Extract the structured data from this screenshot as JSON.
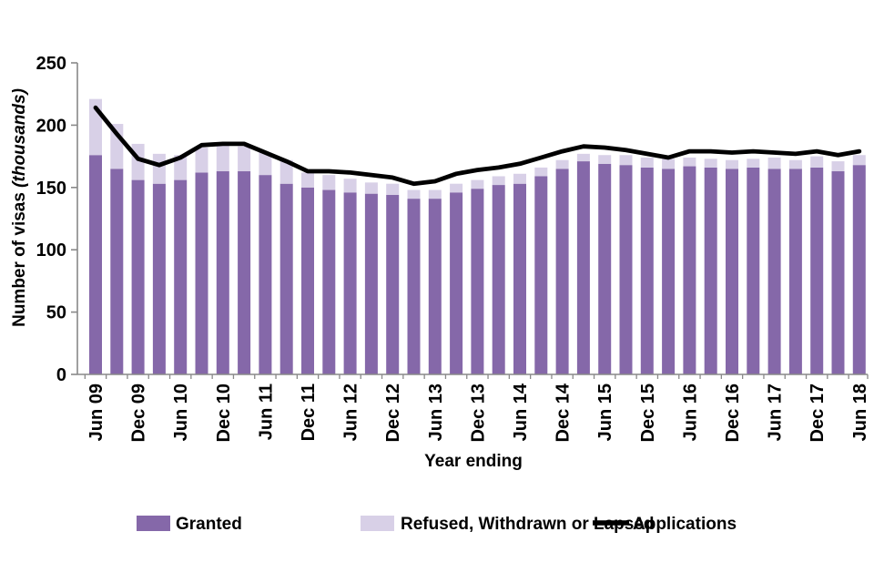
{
  "chart_data": {
    "type": "bar",
    "subtype": "stacked-bars-with-line-overlay",
    "title": "",
    "xlabel": "Year ending",
    "ylabel": "Number of visas (thousands)",
    "ylabel_main": "Number of visas ",
    "ylabel_italic": "(thousands)",
    "ylim": [
      0,
      250
    ],
    "yticks": [
      0,
      50,
      100,
      150,
      200,
      250
    ],
    "grid": "off",
    "legend_position": "bottom",
    "x_tick_labels": [
      "Jun 09",
      "Dec 09",
      "Jun 10",
      "Dec 10",
      "Jun 11",
      "Dec 11",
      "Jun 12",
      "Dec 12",
      "Jun 13",
      "Dec 13",
      "Jun 14",
      "Dec 14",
      "Jun 15",
      "Dec 15",
      "Jun 16",
      "Dec 16",
      "Jun 17",
      "Dec 17",
      "Jun 18"
    ],
    "categories": [
      "Jun 09",
      "Sep 09",
      "Dec 09",
      "Mar 10",
      "Jun 10",
      "Sep 10",
      "Dec 10",
      "Mar 11",
      "Jun 11",
      "Sep 11",
      "Dec 11",
      "Mar 12",
      "Jun 12",
      "Sep 12",
      "Dec 12",
      "Mar 13",
      "Jun 13",
      "Sep 13",
      "Dec 13",
      "Mar 14",
      "Jun 14",
      "Sep 14",
      "Dec 14",
      "Mar 15",
      "Jun 15",
      "Sep 15",
      "Dec 15",
      "Mar 16",
      "Jun 16",
      "Sep 16",
      "Dec 16",
      "Mar 17",
      "Jun 17",
      "Sep 17",
      "Dec 17",
      "Mar 18",
      "Jun 18"
    ],
    "series": [
      {
        "name": "Granted",
        "type": "bar",
        "color": "#8568A9",
        "values": [
          176,
          165,
          156,
          153,
          156,
          162,
          163,
          163,
          160,
          153,
          150,
          148,
          146,
          145,
          144,
          141,
          141,
          146,
          149,
          152,
          153,
          159,
          165,
          171,
          169,
          168,
          166,
          165,
          167,
          166,
          165,
          166,
          165,
          165,
          166,
          163,
          168
        ]
      },
      {
        "name": "Refused, Withdrawn or Lapsed",
        "type": "bar",
        "color": "#D8D0E7",
        "values": [
          45,
          36,
          29,
          24,
          20,
          20,
          21,
          20,
          18,
          19,
          12,
          12,
          11,
          9,
          9,
          7,
          7,
          7,
          7,
          7,
          8,
          7,
          7,
          6,
          7,
          8,
          8,
          8,
          7,
          7,
          7,
          7,
          9,
          7,
          9,
          8,
          8
        ]
      },
      {
        "name": "Applications",
        "type": "line",
        "color": "#000000",
        "values": [
          214,
          193,
          173,
          168,
          174,
          184,
          185,
          185,
          178,
          171,
          163,
          163,
          162,
          160,
          158,
          153,
          155,
          161,
          164,
          166,
          169,
          174,
          179,
          183,
          182,
          180,
          177,
          174,
          179,
          179,
          178,
          179,
          178,
          177,
          179,
          176,
          179
        ]
      }
    ]
  },
  "colors": {
    "axis": "#898989",
    "text": "#000000",
    "background": "#ffffff"
  }
}
